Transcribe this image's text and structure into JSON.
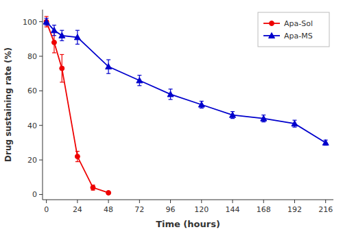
{
  "chart_data": {
    "type": "line",
    "xlabel": "Time (hours)",
    "ylabel": "Drug sustaining rate (%)",
    "series": [
      {
        "name": "Apa-Sol",
        "color": "#EE0000",
        "marker": "circle",
        "line_style": "solid",
        "x": [
          0,
          6,
          12,
          24,
          36,
          48
        ],
        "values": [
          100,
          88,
          73,
          22,
          4,
          1
        ],
        "errors": [
          3,
          6,
          8,
          3,
          1.5,
          0.5
        ]
      },
      {
        "name": "Apa-MS",
        "color": "#0000CC",
        "marker": "triangle",
        "line_style": "solid",
        "x": [
          0,
          6,
          12,
          24,
          48,
          72,
          96,
          120,
          144,
          168,
          192,
          216
        ],
        "values": [
          100,
          95,
          92,
          91,
          74,
          66,
          58,
          52,
          46,
          44,
          41,
          30
        ],
        "errors": [
          2,
          3,
          3,
          4,
          4,
          3,
          3,
          2,
          2,
          2,
          2,
          1.5
        ]
      }
    ],
    "xlim": [
      -3,
      222
    ],
    "ylim": [
      -3,
      107
    ],
    "xticks": [
      0,
      24,
      48,
      72,
      96,
      120,
      144,
      168,
      192,
      216
    ],
    "yticks": [
      0,
      20,
      40,
      60,
      80,
      100
    ],
    "grid": false,
    "legend": "upper right"
  }
}
